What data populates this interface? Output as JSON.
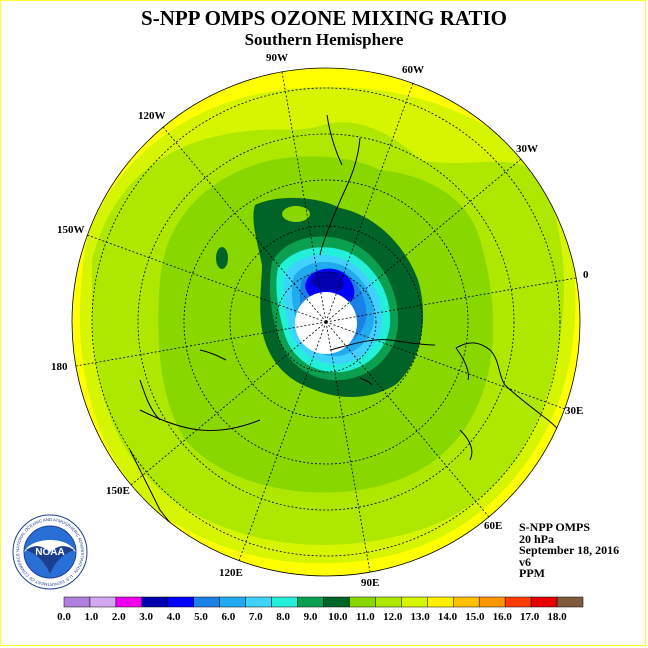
{
  "title": "S-NPP OMPS OZONE MIXING RATIO",
  "subtitle": "Southern Hemisphere",
  "longitude_labels": [
    "90W",
    "60W",
    "30W",
    "0",
    "30E",
    "60E",
    "90E",
    "120E",
    "150E",
    "180",
    "150W",
    "120W"
  ],
  "info": {
    "product": "S-NPP OMPS",
    "pressure": "20 hPa",
    "date": "September 18, 2016",
    "version": "v6",
    "units": "PPM"
  },
  "logo": {
    "text": "NOAA",
    "ring_text": "NATIONAL OCEANIC AND ATMOSPHERIC ADMINISTRATION · U.S. DEPARTMENT OF COMMERCE"
  },
  "colorbar": {
    "labels": [
      "0.0",
      "1.0",
      "2.0",
      "3.0",
      "4.0",
      "5.0",
      "6.0",
      "7.0",
      "8.0",
      "9.0",
      "10.0",
      "11.0",
      "12.0",
      "13.0",
      "14.0",
      "15.0",
      "16.0",
      "17.0",
      "18.0"
    ],
    "colors": [
      "#b07fe0",
      "#d2a8f0",
      "#ee00ee",
      "#0000b0",
      "#0000ff",
      "#1a82e6",
      "#22aaf0",
      "#40d2ff",
      "#22f0d8",
      "#0aa050",
      "#006428",
      "#88d800",
      "#aeea00",
      "#d6f500",
      "#fff000",
      "#ffc000",
      "#ff9600",
      "#ff3c00",
      "#e60000",
      "#7f5a3c"
    ]
  },
  "chart_data": {
    "type": "heatmap",
    "title": "S-NPP OMPS OZONE MIXING RATIO",
    "subtitle": "Southern Hemisphere",
    "projection": "south polar stereographic",
    "variable": "ozone mixing ratio",
    "units": "PPM",
    "pressure_level": "20 hPa",
    "date": "September 18, 2016",
    "scale": [
      0,
      18
    ],
    "scale_step": 1,
    "value_range_shown": {
      "polar_core_min_approx": 3,
      "collar_approx": 10,
      "outer_max_approx": 13
    }
  }
}
